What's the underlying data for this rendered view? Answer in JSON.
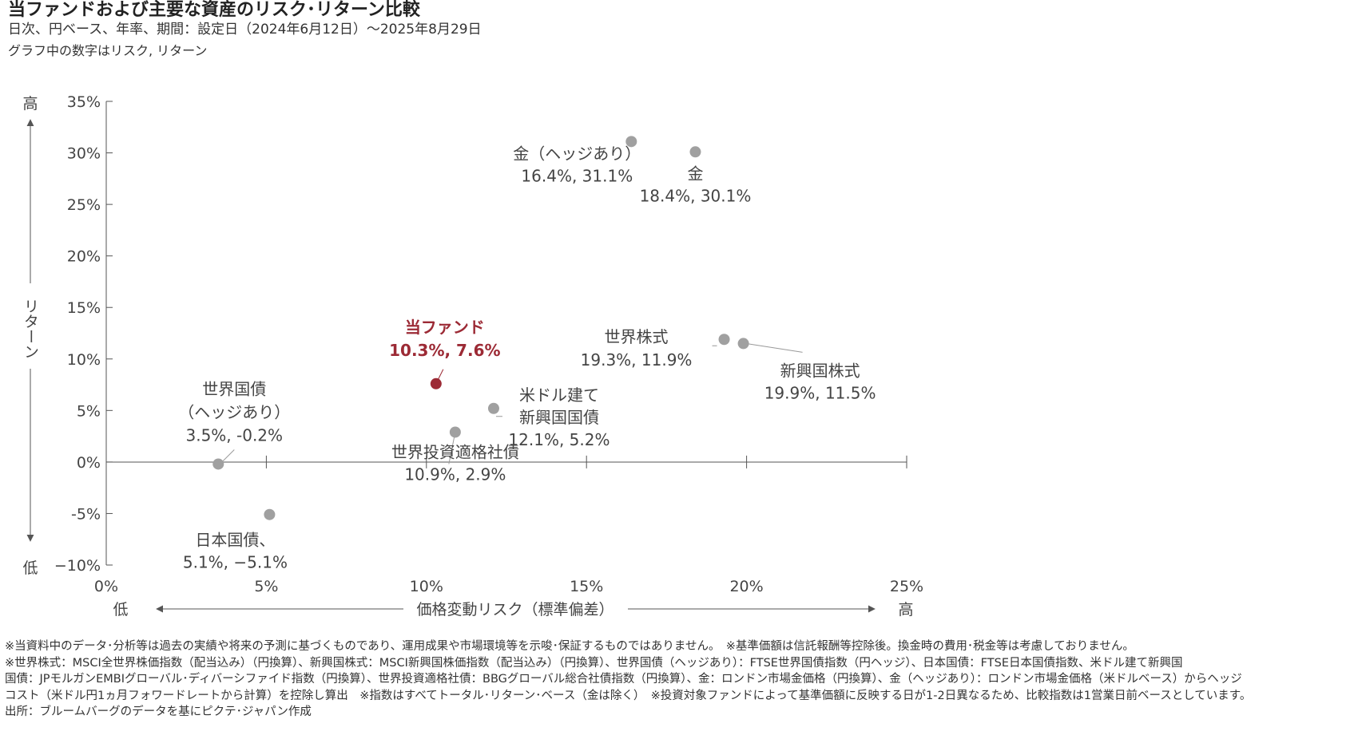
{
  "header": {
    "title": "当ファンドおよび主要な資産のリスク･リターン比較",
    "subtitle": "日次、円ベース、年率、期間：設定日（2024年6月12日）～2025年8月29日",
    "note": "グラフ中の数字はリスク, リターン"
  },
  "chart_data": {
    "type": "scatter",
    "xlabel": "価格変動リスク（標準偏差）",
    "ylabel": "リターン",
    "x_low_label": "低",
    "x_high_label": "高",
    "y_low_label": "低",
    "y_high_label": "高",
    "xlim": [
      0,
      25
    ],
    "ylim": [
      -10,
      35
    ],
    "x_ticks": [
      0,
      5,
      10,
      15,
      20,
      25
    ],
    "y_ticks": [
      -10,
      -5,
      0,
      5,
      10,
      15,
      20,
      25,
      30,
      35
    ],
    "x_tick_labels": [
      "0%",
      "5%",
      "10%",
      "15%",
      "20%",
      "25%"
    ],
    "y_tick_labels": [
      "−10%",
      "-5%",
      "0%",
      "5%",
      "10%",
      "15%",
      "20%",
      "25%",
      "30%",
      "35%"
    ],
    "grid": false,
    "point_color": "#a0a0a0",
    "highlight_color": "#9c2a35",
    "points": [
      {
        "name_lines": [
          "金（ヘッジあり）"
        ],
        "value_label": "16.4%, 31.1%",
        "x": 16.4,
        "y": 31.1,
        "highlight": false
      },
      {
        "name_lines": [
          "金"
        ],
        "value_label": "18.4%, 30.1%",
        "x": 18.4,
        "y": 30.1,
        "highlight": false
      },
      {
        "name_lines": [
          "当ファンド"
        ],
        "value_label": "10.3%, 7.6%",
        "x": 10.3,
        "y": 7.6,
        "highlight": true
      },
      {
        "name_lines": [
          "世界株式"
        ],
        "value_label": "19.3%, 11.9%",
        "x": 19.3,
        "y": 11.9,
        "highlight": false
      },
      {
        "name_lines": [
          "新興国株式"
        ],
        "value_label": "19.9%, 11.5%",
        "x": 19.9,
        "y": 11.5,
        "highlight": false
      },
      {
        "name_lines": [
          "米ドル建て",
          "新興国国債"
        ],
        "value_label": "12.1%, 5.2%",
        "x": 12.1,
        "y": 5.2,
        "highlight": false
      },
      {
        "name_lines": [
          "世界投資適格社債"
        ],
        "value_label": "10.9%, 2.9%",
        "x": 10.9,
        "y": 2.9,
        "highlight": false
      },
      {
        "name_lines": [
          "世界国債",
          "（ヘッジあり）"
        ],
        "value_label": "3.5%, -0.2%",
        "x": 3.5,
        "y": -0.2,
        "highlight": false
      },
      {
        "name_lines": [
          "日本国債、"
        ],
        "value_label": "5.1%, −5.1%",
        "x": 5.1,
        "y": -5.1,
        "highlight": false
      }
    ]
  },
  "footnotes": {
    "line1": "※当資料中のデータ･分析等は過去の実績や将来の予測に基づくものであり、運用成果や市場環境等を示唆･保証するものではありません。　※基準価額は信託報酬等控除後。換金時の費用･税金等は考慮しておりません。",
    "line2": "※世界株式：MSCI全世界株価指数（配当込み）（円換算）、新興国株式：MSCI新興国株価指数（配当込み）（円換算）、世界国債（ヘッジあり）：FTSE世界国債指数（円ヘッジ）、日本国債：FTSE日本国債指数、米ドル建て新興国",
    "line3": "国債：JPモルガンEMBIグローバル･ディバーシファイド指数（円換算）、世界投資適格社債：BBGグローバル総合社債指数（円換算）、金：ロンドン市場金価格（円換算）、金（ヘッジあり）：ロンドン市場金価格（米ドルベース）からヘッジ",
    "line4": "コスト（米ドル円1ヵ月フォワードレートから計算）を控除し算出　※指数はすべてトータル･リターン･ベース（金は除く）　※投資対象ファンドによって基準価額に反映する日が1-2日異なるため、比較指数は1営業日前ベースとしています。",
    "source": "出所：ブルームバーグのデータを基にピクテ･ジャパン作成"
  }
}
